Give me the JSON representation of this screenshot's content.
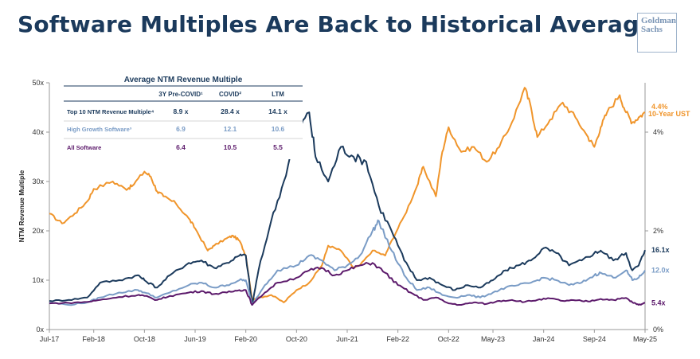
{
  "title": "Software Multiples Are Back to Historical Averages",
  "logo_text": "Goldman Sachs",
  "table": {
    "title": "Average NTM Revenue Multiple",
    "headers": [
      "3Y Pre-COVID¹",
      "COVID²",
      "LTM"
    ],
    "rows": [
      {
        "label": "Top 10 NTM Revenue Multiple⁴",
        "values": [
          "8.9 x",
          "28.4 x",
          "14.1 x"
        ],
        "color": "#1b3a5c"
      },
      {
        "label": "High Growth Software³",
        "values": [
          "6.9",
          "12.1",
          "10.6"
        ],
        "color": "#7a9cc6"
      },
      {
        "label": "All Software",
        "values": [
          "6.4",
          "10.5",
          "5.5"
        ],
        "color": "#5c1a6b"
      }
    ]
  },
  "chart_data": {
    "type": "line",
    "ylabel": "NTM Revenue Multiple",
    "ylim": [
      0,
      50
    ],
    "yticks": [
      "0x",
      "10x",
      "20x",
      "30x",
      "40x",
      "50x"
    ],
    "y2lim": [
      0,
      5
    ],
    "y2ticks": [
      {
        "value": 0,
        "label": "0%"
      },
      {
        "value": 2,
        "label": "2%"
      },
      {
        "value": 4,
        "label": "4%"
      }
    ],
    "xlim": [
      "2017-07",
      "2025-05"
    ],
    "xticks": [
      "Jul-17",
      "Feb-18",
      "Oct-18",
      "Jun-19",
      "Feb-20",
      "Oct-20",
      "Jun-21",
      "Feb-22",
      "Oct-22",
      "May-23",
      "Jan-24",
      "Sep-24",
      "May-25"
    ],
    "xtick_dates": [
      "2017-07",
      "2018-02",
      "2018-10",
      "2019-06",
      "2020-02",
      "2020-10",
      "2021-06",
      "2022-02",
      "2022-10",
      "2023-05",
      "2024-01",
      "2024-09",
      "2025-05"
    ],
    "series": [
      {
        "name": "10-Year UST",
        "axis": "right",
        "color": "#f0952b",
        "end_label": "4.4%",
        "points": [
          [
            "2017-07",
            2.35
          ],
          [
            "2017-09",
            2.15
          ],
          [
            "2017-11",
            2.35
          ],
          [
            "2018-01",
            2.6
          ],
          [
            "2018-02",
            2.85
          ],
          [
            "2018-05",
            3.0
          ],
          [
            "2018-07",
            2.85
          ],
          [
            "2018-08",
            2.9
          ],
          [
            "2018-10",
            3.2
          ],
          [
            "2018-11",
            3.1
          ],
          [
            "2018-12",
            2.8
          ],
          [
            "2019-01",
            2.7
          ],
          [
            "2019-03",
            2.55
          ],
          [
            "2019-05",
            2.25
          ],
          [
            "2019-06",
            2.05
          ],
          [
            "2019-08",
            1.6
          ],
          [
            "2019-09",
            1.7
          ],
          [
            "2019-11",
            1.85
          ],
          [
            "2019-12",
            1.9
          ],
          [
            "2020-01",
            1.8
          ],
          [
            "2020-02",
            1.5
          ],
          [
            "2020-03",
            0.6
          ],
          [
            "2020-04",
            0.65
          ],
          [
            "2020-06",
            0.7
          ],
          [
            "2020-08",
            0.55
          ],
          [
            "2020-10",
            0.8
          ],
          [
            "2020-12",
            0.95
          ],
          [
            "2021-02",
            1.3
          ],
          [
            "2021-03",
            1.7
          ],
          [
            "2021-05",
            1.6
          ],
          [
            "2021-07",
            1.25
          ],
          [
            "2021-08",
            1.3
          ],
          [
            "2021-10",
            1.6
          ],
          [
            "2021-12",
            1.5
          ],
          [
            "2022-01",
            1.8
          ],
          [
            "2022-03",
            2.3
          ],
          [
            "2022-05",
            2.9
          ],
          [
            "2022-06",
            3.3
          ],
          [
            "2022-08",
            2.7
          ],
          [
            "2022-09",
            3.6
          ],
          [
            "2022-10",
            4.1
          ],
          [
            "2022-12",
            3.6
          ],
          [
            "2023-02",
            3.7
          ],
          [
            "2023-04",
            3.4
          ],
          [
            "2023-06",
            3.7
          ],
          [
            "2023-08",
            4.2
          ],
          [
            "2023-10",
            4.9
          ],
          [
            "2023-11",
            4.5
          ],
          [
            "2023-12",
            3.9
          ],
          [
            "2024-02",
            4.25
          ],
          [
            "2024-04",
            4.6
          ],
          [
            "2024-06",
            4.3
          ],
          [
            "2024-08",
            3.9
          ],
          [
            "2024-09",
            3.7
          ],
          [
            "2024-10",
            4.1
          ],
          [
            "2024-11",
            4.4
          ],
          [
            "2025-01",
            4.75
          ],
          [
            "2025-02",
            4.4
          ],
          [
            "2025-03",
            4.2
          ],
          [
            "2025-04",
            4.3
          ],
          [
            "2025-05",
            4.4
          ]
        ]
      },
      {
        "name": "Top 10 NTM Revenue Multiple",
        "axis": "left",
        "color": "#1b3a5c",
        "end_label": "16.1x",
        "points": [
          [
            "2017-07",
            5.8
          ],
          [
            "2017-10",
            6.0
          ],
          [
            "2018-01",
            6.5
          ],
          [
            "2018-03",
            9.5
          ],
          [
            "2018-06",
            10.0
          ],
          [
            "2018-09",
            11.0
          ],
          [
            "2018-10",
            10.0
          ],
          [
            "2018-12",
            8.5
          ],
          [
            "2019-02",
            11.0
          ],
          [
            "2019-05",
            13.5
          ],
          [
            "2019-07",
            14.0
          ],
          [
            "2019-09",
            12.5
          ],
          [
            "2019-11",
            13.5
          ],
          [
            "2020-01",
            15.0
          ],
          [
            "2020-02",
            15.0
          ],
          [
            "2020-03",
            5.0
          ],
          [
            "2020-04",
            12.0
          ],
          [
            "2020-06",
            22.0
          ],
          [
            "2020-08",
            30.0
          ],
          [
            "2020-10",
            40.0
          ],
          [
            "2020-12",
            44.0
          ],
          [
            "2021-01",
            35.0
          ],
          [
            "2021-03",
            30.0
          ],
          [
            "2021-05",
            37.0
          ],
          [
            "2021-07",
            35.0
          ],
          [
            "2021-09",
            34.0
          ],
          [
            "2021-11",
            25.0
          ],
          [
            "2022-01",
            20.0
          ],
          [
            "2022-03",
            14.0
          ],
          [
            "2022-05",
            10.0
          ],
          [
            "2022-07",
            10.5
          ],
          [
            "2022-09",
            9.0
          ],
          [
            "2022-11",
            8.0
          ],
          [
            "2023-01",
            9.0
          ],
          [
            "2023-03",
            8.5
          ],
          [
            "2023-05",
            10.0
          ],
          [
            "2023-07",
            12.0
          ],
          [
            "2023-09",
            13.0
          ],
          [
            "2023-11",
            14.0
          ],
          [
            "2024-01",
            16.5
          ],
          [
            "2024-03",
            15.5
          ],
          [
            "2024-05",
            13.0
          ],
          [
            "2024-07",
            14.0
          ],
          [
            "2024-09",
            15.5
          ],
          [
            "2024-10",
            16.0
          ],
          [
            "2024-12",
            14.0
          ],
          [
            "2025-02",
            15.5
          ],
          [
            "2025-03",
            12.0
          ],
          [
            "2025-04",
            13.0
          ],
          [
            "2025-05",
            16.1
          ]
        ]
      },
      {
        "name": "High Growth Software",
        "axis": "left",
        "color": "#7a9cc6",
        "end_label": "12.0x",
        "points": [
          [
            "2017-07",
            5.5
          ],
          [
            "2017-10",
            5.0
          ],
          [
            "2018-01",
            5.5
          ],
          [
            "2018-03",
            6.5
          ],
          [
            "2018-06",
            7.5
          ],
          [
            "2018-09",
            8.0
          ],
          [
            "2018-10",
            7.5
          ],
          [
            "2018-12",
            6.5
          ],
          [
            "2019-02",
            7.5
          ],
          [
            "2019-05",
            9.0
          ],
          [
            "2019-07",
            9.5
          ],
          [
            "2019-09",
            8.5
          ],
          [
            "2019-11",
            9.0
          ],
          [
            "2020-01",
            10.0
          ],
          [
            "2020-02",
            10.0
          ],
          [
            "2020-03",
            5.0
          ],
          [
            "2020-05",
            9.0
          ],
          [
            "2020-07",
            12.0
          ],
          [
            "2020-10",
            13.0
          ],
          [
            "2020-12",
            15.0
          ],
          [
            "2021-02",
            14.0
          ],
          [
            "2021-04",
            12.0
          ],
          [
            "2021-06",
            13.0
          ],
          [
            "2021-08",
            15.0
          ],
          [
            "2021-10",
            20.0
          ],
          [
            "2021-11",
            22.0
          ],
          [
            "2022-01",
            16.0
          ],
          [
            "2022-03",
            11.0
          ],
          [
            "2022-05",
            8.0
          ],
          [
            "2022-07",
            8.5
          ],
          [
            "2022-09",
            7.0
          ],
          [
            "2022-11",
            6.5
          ],
          [
            "2023-01",
            7.0
          ],
          [
            "2023-03",
            6.5
          ],
          [
            "2023-05",
            7.5
          ],
          [
            "2023-07",
            8.5
          ],
          [
            "2023-09",
            9.0
          ],
          [
            "2023-11",
            9.5
          ],
          [
            "2024-01",
            10.5
          ],
          [
            "2024-03",
            10.0
          ],
          [
            "2024-05",
            9.0
          ],
          [
            "2024-07",
            9.5
          ],
          [
            "2024-09",
            11.0
          ],
          [
            "2024-10",
            11.5
          ],
          [
            "2024-12",
            10.5
          ],
          [
            "2025-02",
            12.0
          ],
          [
            "2025-03",
            10.0
          ],
          [
            "2025-04",
            10.5
          ],
          [
            "2025-05",
            12.0
          ]
        ]
      },
      {
        "name": "All Software",
        "axis": "left",
        "color": "#5c1a6b",
        "end_label": "5.4x",
        "points": [
          [
            "2017-07",
            5.3
          ],
          [
            "2017-10",
            5.4
          ],
          [
            "2018-01",
            5.6
          ],
          [
            "2018-03",
            6.0
          ],
          [
            "2018-06",
            6.6
          ],
          [
            "2018-09",
            7.0
          ],
          [
            "2018-10",
            6.8
          ],
          [
            "2018-12",
            6.0
          ],
          [
            "2019-02",
            6.8
          ],
          [
            "2019-05",
            7.5
          ],
          [
            "2019-07",
            7.8
          ],
          [
            "2019-09",
            7.2
          ],
          [
            "2019-11",
            7.5
          ],
          [
            "2020-01",
            8.0
          ],
          [
            "2020-02",
            8.0
          ],
          [
            "2020-03",
            5.0
          ],
          [
            "2020-05",
            7.5
          ],
          [
            "2020-07",
            9.5
          ],
          [
            "2020-10",
            10.5
          ],
          [
            "2020-12",
            12.0
          ],
          [
            "2021-02",
            12.5
          ],
          [
            "2021-04",
            11.0
          ],
          [
            "2021-06",
            12.0
          ],
          [
            "2021-08",
            13.0
          ],
          [
            "2021-10",
            13.5
          ],
          [
            "2021-12",
            11.5
          ],
          [
            "2022-02",
            9.0
          ],
          [
            "2022-04",
            7.5
          ],
          [
            "2022-06",
            6.0
          ],
          [
            "2022-08",
            6.5
          ],
          [
            "2022-10",
            5.3
          ],
          [
            "2022-12",
            5.0
          ],
          [
            "2023-02",
            5.5
          ],
          [
            "2023-04",
            5.2
          ],
          [
            "2023-06",
            5.8
          ],
          [
            "2023-08",
            6.0
          ],
          [
            "2023-10",
            5.6
          ],
          [
            "2023-12",
            6.0
          ],
          [
            "2024-02",
            6.3
          ],
          [
            "2024-04",
            5.8
          ],
          [
            "2024-06",
            5.9
          ],
          [
            "2024-08",
            5.7
          ],
          [
            "2024-10",
            6.2
          ],
          [
            "2024-12",
            6.0
          ],
          [
            "2025-02",
            6.4
          ],
          [
            "2025-03",
            5.5
          ],
          [
            "2025-04",
            5.0
          ],
          [
            "2025-05",
            5.4
          ]
        ]
      }
    ]
  }
}
